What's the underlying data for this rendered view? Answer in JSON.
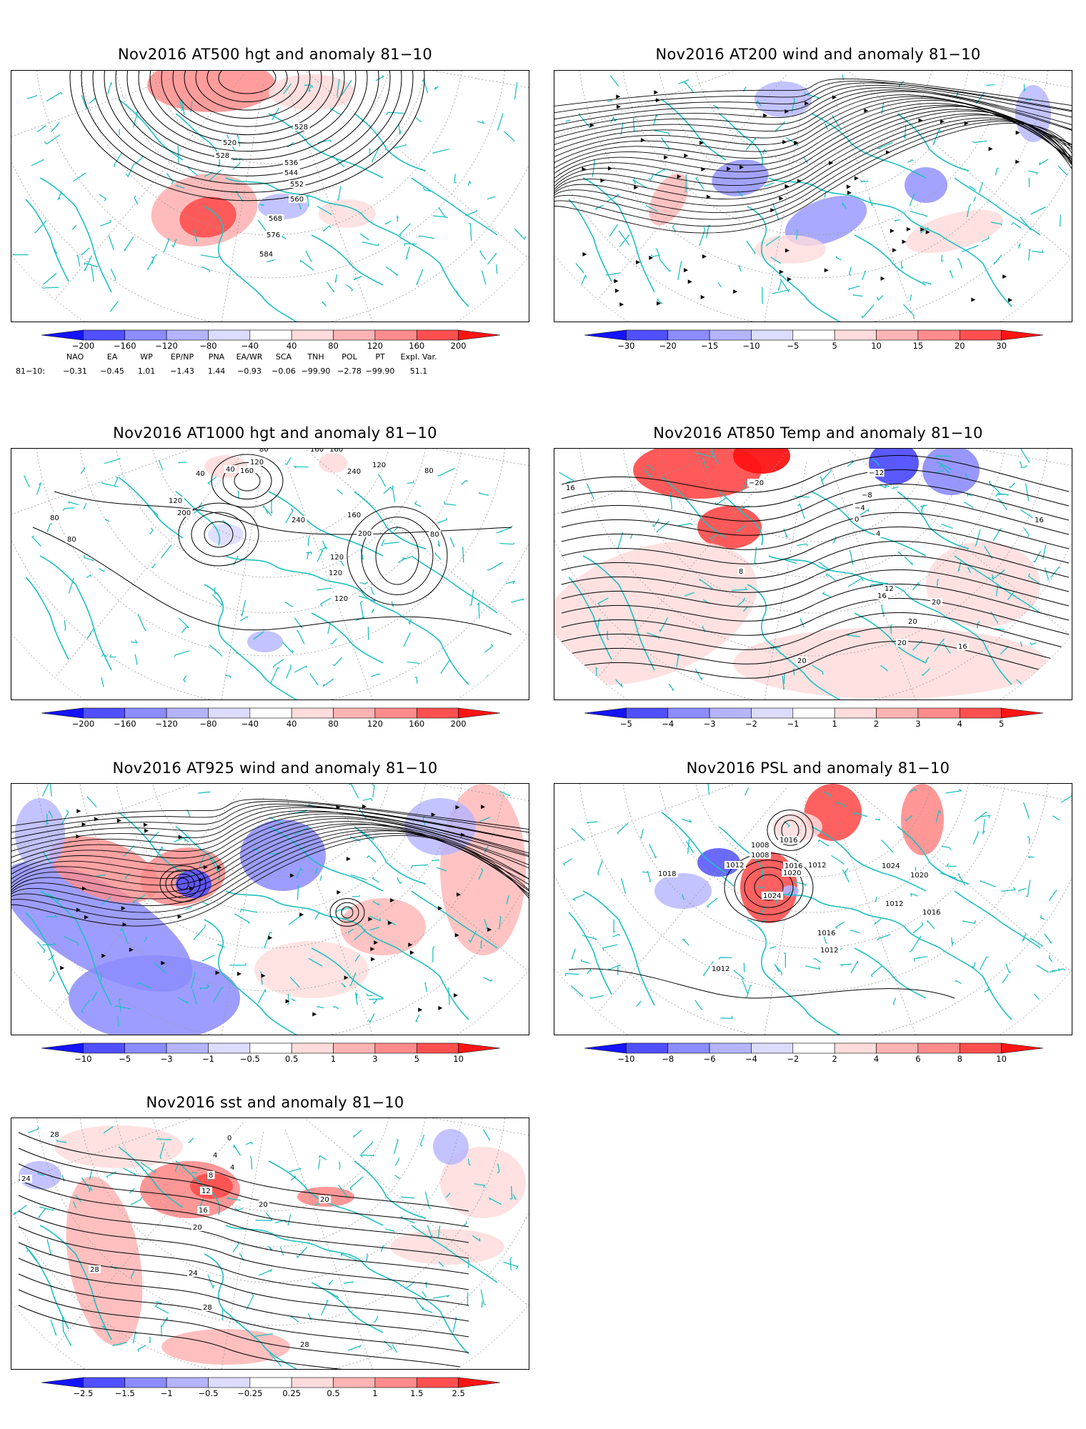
{
  "panels": {
    "p1": {
      "title": "Nov2016 AT500 hgt and anomaly 81−10",
      "contour_labels": [
        "520",
        "528",
        "528",
        "536",
        "544",
        "552",
        "560",
        "568",
        "576",
        "584"
      ],
      "colorbar": [
        "−200",
        "−160",
        "−120",
        "−80",
        "−40",
        "40",
        "80",
        "120",
        "160",
        "200"
      ]
    },
    "p2": {
      "title": "Nov2016 AT200 wind and anomaly 81−10",
      "contour_labels": [],
      "colorbar": [
        "−30",
        "−20",
        "−15",
        "−10",
        "−5",
        "5",
        "10",
        "15",
        "20",
        "30"
      ]
    },
    "p3": {
      "title": "Nov2016 AT1000 hgt and anomaly 81−10",
      "contour_labels": [
        "80",
        "120",
        "40",
        "160",
        "160",
        "240",
        "120",
        "160",
        "200",
        "160",
        "200",
        "120",
        "80",
        "80",
        "240",
        "120",
        "120",
        "160",
        "120",
        "80",
        "80",
        "40"
      ],
      "colorbar": [
        "−200",
        "−160",
        "−120",
        "−80",
        "−40",
        "40",
        "80",
        "120",
        "160",
        "200"
      ]
    },
    "p4": {
      "title": "Nov2016 AT850 Temp and anomaly 81−10",
      "contour_labels": [
        "16",
        "−20",
        "−12",
        "−8",
        "−4",
        "0",
        "4",
        "8",
        "12",
        "16",
        "20",
        "20",
        "16",
        "20",
        "20",
        "16"
      ],
      "colorbar": [
        "−5",
        "−4",
        "−3",
        "−2",
        "−1",
        "1",
        "2",
        "3",
        "4",
        "5"
      ]
    },
    "p5": {
      "title": "Nov2016 AT925 wind and anomaly 81−10",
      "contour_labels": [],
      "colorbar": [
        "−10",
        "−5",
        "−3",
        "−1",
        "−0.5",
        "0.5",
        "1",
        "3",
        "5",
        "10"
      ]
    },
    "p6": {
      "title": "Nov2016 PSL and anomaly 81−10",
      "contour_labels": [
        "1016",
        "1008",
        "1012",
        "1008",
        "1016",
        "1020",
        "1012",
        "1024",
        "1018",
        "1024",
        "1020",
        "1016",
        "1012",
        "1016",
        "1012",
        "1012"
      ],
      "colorbar": [
        "−10",
        "−8",
        "−6",
        "−4",
        "−2",
        "2",
        "4",
        "6",
        "8",
        "10"
      ]
    },
    "p7": {
      "title": "Nov2016 sst and anomaly 81−10",
      "contour_labels": [
        "0",
        "4",
        "4",
        "8",
        "12",
        "16",
        "20",
        "20",
        "20",
        "24",
        "28",
        "28",
        "28",
        "24",
        "28"
      ],
      "colorbar": [
        "−2.5",
        "−1.5",
        "−1",
        "−0.5",
        "−0.25",
        "0.25",
        "0.5",
        "1",
        "1.5",
        "2.5"
      ]
    }
  },
  "indices": {
    "headers": [
      "NAO",
      "EA",
      "WP",
      "EP/NP",
      "PNA",
      "EA/WR",
      "SCA",
      "TNH",
      "POL",
      "PT",
      "Expl. Var."
    ],
    "row_label": "81−10:",
    "values": [
      "−0.31",
      "−0.45",
      "1.01",
      "−1.43",
      "1.44",
      "−0.93",
      "−0.06",
      "−99.90",
      "−2.78",
      "−99.90",
      "51.1"
    ]
  },
  "colors": {
    "neg": [
      "#1414ff",
      "#5050ff",
      "#8c8cff",
      "#b4b4ff",
      "#dcdcff"
    ],
    "pos": [
      "#ffdcdc",
      "#ffb4b4",
      "#ff8c8c",
      "#ff5050",
      "#ff1414"
    ],
    "coast": "#20c0c0",
    "contour": "#000000"
  }
}
